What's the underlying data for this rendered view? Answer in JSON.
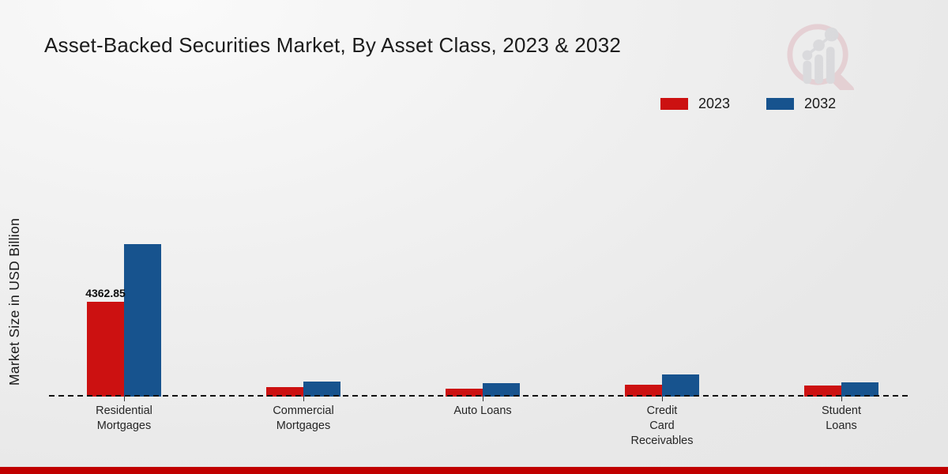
{
  "title": "Asset-Backed Securities Market, By Asset Class, 2023 & 2032",
  "watermark_icon": "magnifier-bar-chart-logo",
  "colors": {
    "series_2023": "#cc1111",
    "series_2032": "#17538e",
    "footer_band": "#c00000",
    "baseline": "#111111"
  },
  "chart_data": {
    "type": "bar",
    "title": "Asset-Backed Securities Market, By Asset Class, 2023 & 2032",
    "ylabel": "Market Size in USD Billion",
    "xlabel": "",
    "categories": [
      "Residential Mortgages",
      "Commercial Mortgages",
      "Auto Loans",
      "Credit Card Receivables",
      "Student Loans"
    ],
    "category_label_lines": [
      [
        "Residential",
        "Mortgages"
      ],
      [
        "Commercial",
        "Mortgages"
      ],
      [
        "Auto Loans"
      ],
      [
        "Credit",
        "Card",
        "Receivables"
      ],
      [
        "Student",
        "Loans"
      ]
    ],
    "series": [
      {
        "name": "2023",
        "color": "#cc1111",
        "values": [
          4362.85,
          450,
          350,
          540,
          510
        ]
      },
      {
        "name": "2032",
        "color": "#17538e",
        "values": [
          7000,
          700,
          600,
          1030,
          660
        ]
      }
    ],
    "data_labels": [
      {
        "series": "2023",
        "category": "Residential Mortgages",
        "text": "4362.85"
      }
    ],
    "ylim": [
      0,
      7300
    ],
    "grid": false,
    "legend_position": "top-right",
    "baseline_style": "dashed"
  }
}
